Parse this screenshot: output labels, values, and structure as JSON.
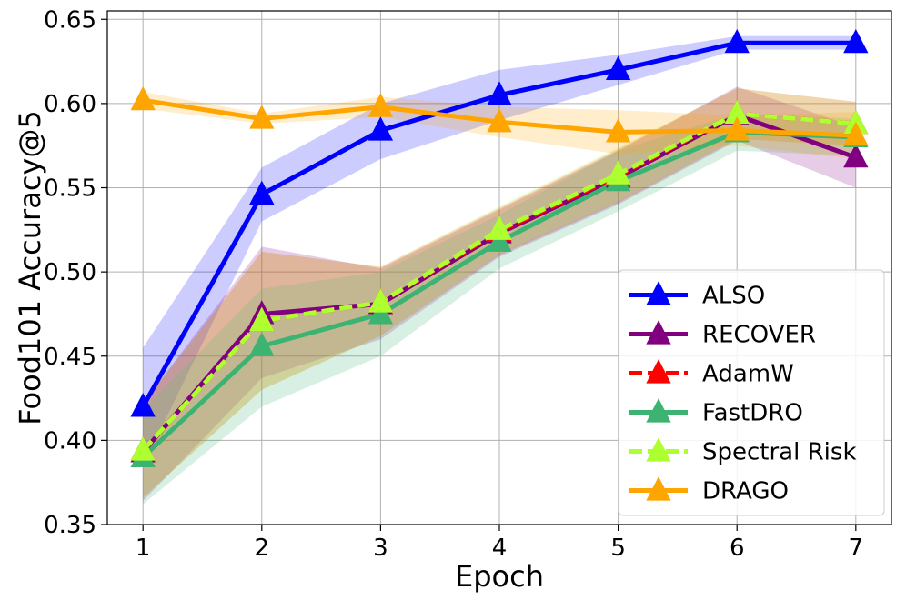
{
  "chart_data": {
    "type": "line",
    "title": "",
    "xlabel": "Epoch",
    "ylabel": "Food101 Accuracy@5",
    "x": [
      1,
      2,
      3,
      4,
      5,
      6,
      7
    ],
    "xlim": [
      0.7,
      7.3
    ],
    "ylim": [
      0.35,
      0.655
    ],
    "xticks": [
      "1",
      "2",
      "3",
      "4",
      "5",
      "6",
      "7"
    ],
    "yticks": [
      "0.35",
      "0.40",
      "0.45",
      "0.50",
      "0.55",
      "0.60",
      "0.65"
    ],
    "ytick_values": [
      0.35,
      0.4,
      0.45,
      0.5,
      0.55,
      0.6,
      0.65
    ],
    "grid": true,
    "legend_position": "lower-right",
    "series": [
      {
        "name": "ALSO",
        "color": "#0000ff",
        "dashed": false,
        "values": [
          0.42,
          0.546,
          0.584,
          0.605,
          0.62,
          0.636,
          0.636
        ],
        "lower": [
          0.385,
          0.53,
          0.567,
          0.59,
          0.611,
          0.632,
          0.632
        ],
        "upper": [
          0.455,
          0.562,
          0.6,
          0.62,
          0.629,
          0.64,
          0.64
        ]
      },
      {
        "name": "RECOVER",
        "color": "#800080",
        "dashed": false,
        "values": [
          0.393,
          0.475,
          0.481,
          0.523,
          0.556,
          0.593,
          0.568
        ],
        "lower": [
          0.364,
          0.437,
          0.46,
          0.509,
          0.54,
          0.578,
          0.55
        ],
        "upper": [
          0.422,
          0.515,
          0.502,
          0.537,
          0.572,
          0.61,
          0.586
        ]
      },
      {
        "name": "AdamW",
        "color": "#ff0000",
        "dashed": true,
        "values": [
          0.394,
          0.471,
          0.482,
          0.524,
          0.557,
          0.594,
          0.588
        ],
        "lower": [
          0.366,
          0.43,
          0.462,
          0.51,
          0.541,
          0.579,
          0.575
        ],
        "upper": [
          0.422,
          0.512,
          0.503,
          0.538,
          0.573,
          0.609,
          0.601
        ]
      },
      {
        "name": "FastDRO",
        "color": "#3cb371",
        "dashed": false,
        "values": [
          0.39,
          0.456,
          0.475,
          0.518,
          0.554,
          0.583,
          0.58
        ],
        "lower": [
          0.362,
          0.42,
          0.45,
          0.502,
          0.536,
          0.572,
          0.569
        ],
        "upper": [
          0.418,
          0.49,
          0.5,
          0.534,
          0.572,
          0.594,
          0.591
        ]
      },
      {
        "name": "Spectral Risk",
        "color": "#adff2f",
        "dashed": true,
        "values": [
          0.394,
          0.471,
          0.482,
          0.525,
          0.558,
          0.594,
          0.588
        ],
        "lower": [
          0.366,
          0.43,
          0.462,
          0.511,
          0.542,
          0.579,
          0.575
        ],
        "upper": [
          0.422,
          0.512,
          0.503,
          0.539,
          0.574,
          0.609,
          0.601
        ]
      },
      {
        "name": "DRAGO",
        "color": "#ffa500",
        "dashed": false,
        "values": [
          0.602,
          0.591,
          0.598,
          0.589,
          0.583,
          0.584,
          0.581
        ],
        "lower": [
          0.597,
          0.588,
          0.592,
          0.58,
          0.57,
          0.575,
          0.567
        ],
        "upper": [
          0.607,
          0.594,
          0.604,
          0.598,
          0.596,
          0.593,
          0.595
        ]
      }
    ]
  }
}
